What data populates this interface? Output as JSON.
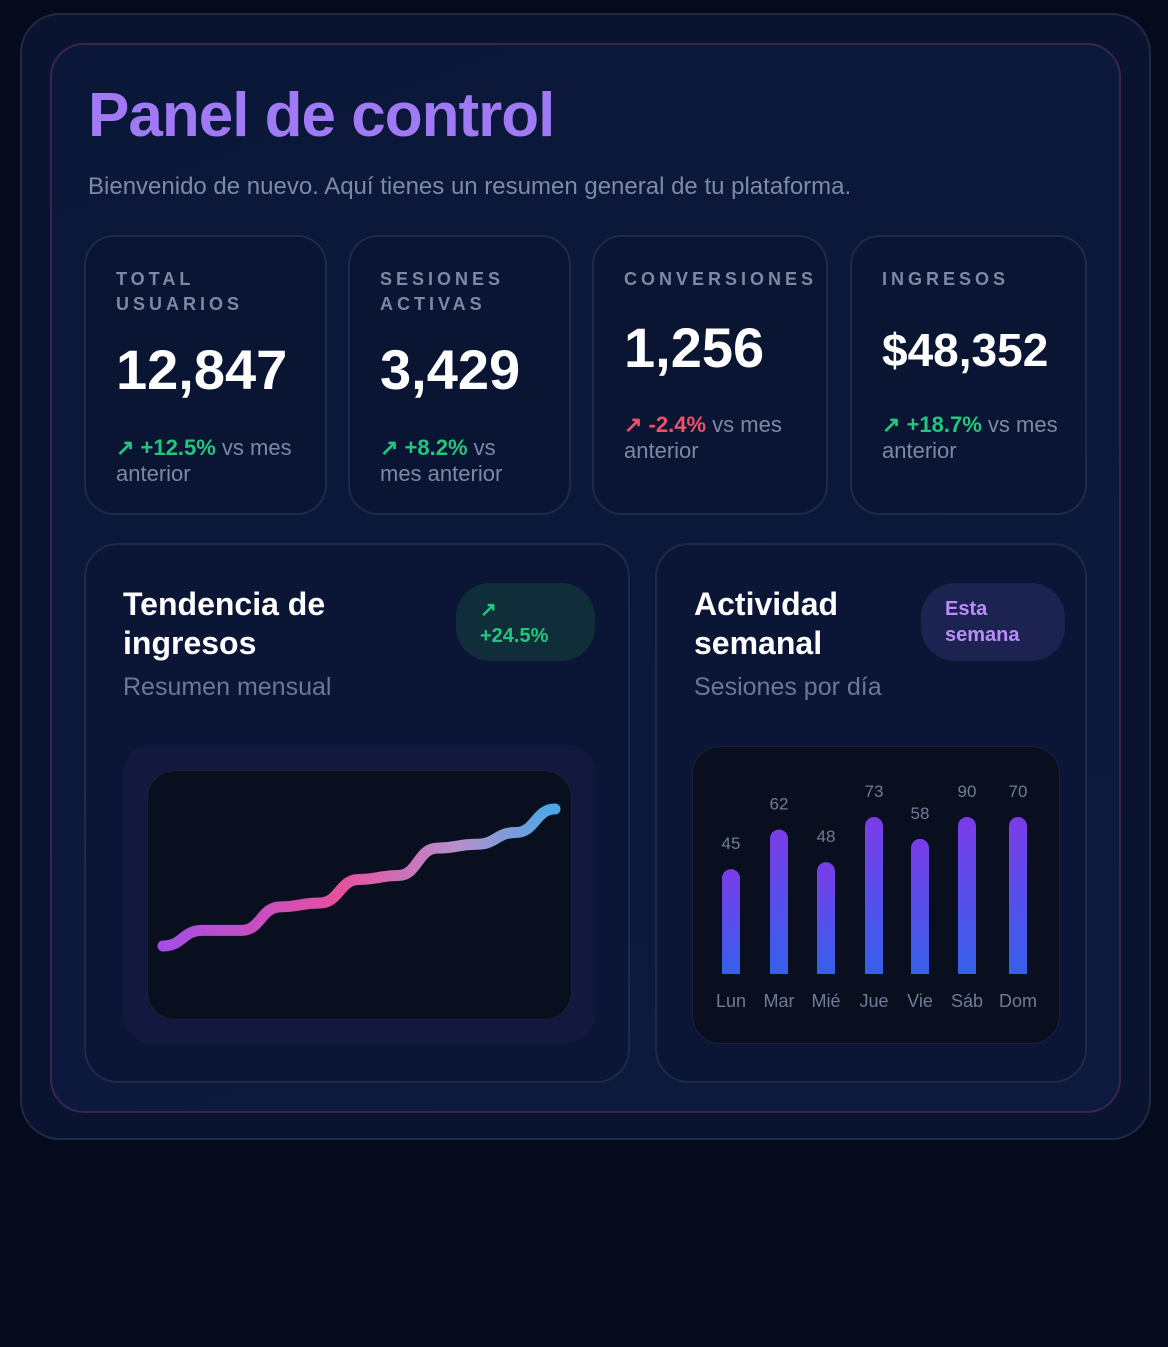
{
  "header": {
    "title": "Panel de control",
    "subtitle": "Bienvenido de nuevo. Aquí tienes un resumen general de tu plataforma."
  },
  "stats": [
    {
      "label": "TOTAL USUARIOS",
      "value": "12,847",
      "change": "↗ +12.5%",
      "suffix": "vs mes anterior",
      "trend": "up"
    },
    {
      "label": "SESIONES ACTIVAS",
      "value": "3,429",
      "change": "↗ +8.2%",
      "suffix": "vs mes anterior",
      "trend": "up"
    },
    {
      "label": "CONVERSIONES",
      "value": "1,256",
      "change": "↗ -2.4%",
      "suffix": "vs mes anterior",
      "trend": "down"
    },
    {
      "label": "INGRESOS",
      "value": "$48,352",
      "change": "↗ +18.7%",
      "suffix": "vs mes anterior",
      "trend": "up"
    }
  ],
  "revenue": {
    "title": "Tendencia de ingresos",
    "subtitle": "Resumen mensual",
    "badge_icon": "↗",
    "badge": "+24.5%"
  },
  "activity": {
    "title": "Actividad semanal",
    "subtitle": "Sesiones por día",
    "badge": "Esta semana"
  },
  "colors": {
    "accent": "#a07af5",
    "positive": "#22c77e",
    "negative": "#f0506a"
  },
  "chart_data": [
    {
      "type": "line",
      "title": "",
      "series": [
        {
          "values": [
            10,
            18,
            18,
            30,
            32,
            44,
            46,
            60,
            62,
            68,
            80
          ]
        }
      ]
    },
    {
      "type": "bar",
      "categories": [
        "Lun",
        "Mar",
        "Mié",
        "Jue",
        "Vie",
        "Sáb",
        "Dom"
      ],
      "values": [
        45,
        62,
        48,
        73,
        58,
        90,
        70
      ]
    }
  ]
}
